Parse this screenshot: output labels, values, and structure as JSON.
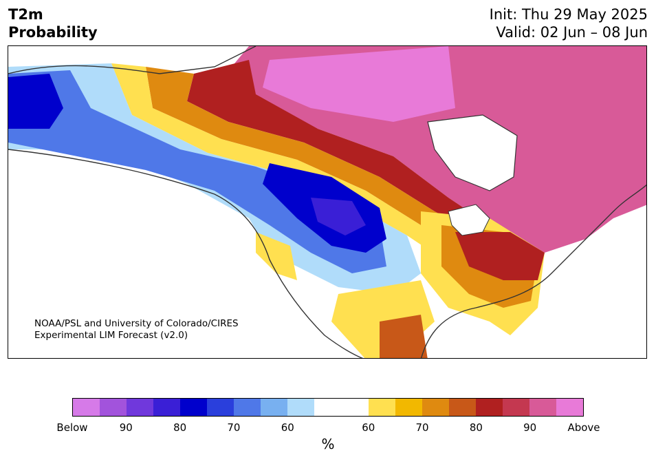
{
  "header": {
    "variable": "T2m",
    "product": "Probability",
    "init": "Init: Thu 29 May 2025",
    "valid": "Valid: 02 Jun – 08 Jun"
  },
  "credit": {
    "line1": "NOAA/PSL and University of Colorado/CIRES",
    "line2": "Experimental LIM Forecast (v2.0)"
  },
  "colorbar": {
    "unit": "%",
    "colors": [
      "#d67ae8",
      "#a253dc",
      "#7038dc",
      "#3a1fd6",
      "#0000cc",
      "#2a3fdc",
      "#4f78e8",
      "#78b0f0",
      "#b0dcfa",
      "#ffffff",
      "#ffffff",
      "#ffe050",
      "#f2b800",
      "#df8a10",
      "#c85818",
      "#b02020",
      "#c43850",
      "#d85a98",
      "#e87ad8"
    ],
    "tick_labels": [
      "Below",
      "90",
      "80",
      "70",
      "60",
      "60",
      "70",
      "80",
      "90",
      "Above"
    ]
  },
  "colors": {
    "above_strong": "#e87ad8",
    "above_mid": "#d85a98",
    "above_red": "#b02020",
    "above_orange": "#df8a10",
    "above_yellow": "#ffe050",
    "below_light": "#b0dcfa",
    "below_mid": "#4f78e8",
    "below_strong": "#0000cc",
    "land_outline": "#333333"
  }
}
